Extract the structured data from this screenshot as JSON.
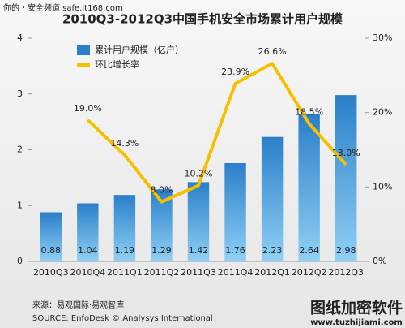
{
  "watermark_top": "你的・安全频道 safe.it168.com",
  "chart_data": {
    "type": "bar_line",
    "title": "2010Q3-2012Q3中国手机安全市场累计用户规模",
    "categories": [
      "2010Q3",
      "2010Q4",
      "2011Q1",
      "2011Q2",
      "2011Q3",
      "2011Q4",
      "2012Q1",
      "2012Q2",
      "2012Q3"
    ],
    "series": [
      {
        "name": "累计用户规模（亿户）",
        "color": "#2b7fc9",
        "type": "bar",
        "values": [
          0.88,
          1.04,
          1.19,
          1.29,
          1.42,
          1.76,
          2.23,
          2.64,
          2.98
        ]
      },
      {
        "name": "环比增长率",
        "color": "#f5c000",
        "type": "line",
        "axis": "y2",
        "values": [
          null,
          19.0,
          14.3,
          8.0,
          10.2,
          23.9,
          26.6,
          18.5,
          13.0
        ],
        "value_labels": [
          null,
          "19.0%",
          "14.3%",
          "8.0%",
          "10.2%",
          "23.9%",
          "26.6%",
          "18.5%",
          "13.0%"
        ]
      }
    ],
    "ylim": [
      0,
      4
    ],
    "yticks": [
      0,
      1,
      2,
      3,
      4
    ],
    "y2lim": [
      0,
      30
    ],
    "y2ticks": [
      {
        "value": 0,
        "label": "0%"
      },
      {
        "value": 10,
        "label": "10%"
      },
      {
        "value": 20,
        "label": "20%"
      },
      {
        "value": 30,
        "label": "30%"
      }
    ],
    "legend": "top-left"
  },
  "source": [
    "来源：易观国际·易观智库",
    "SOURCE: EnfoDesk © Analysys International"
  ],
  "watermark_bottom": [
    "图纸加密软件",
    "www.tuzhijiami.com"
  ]
}
